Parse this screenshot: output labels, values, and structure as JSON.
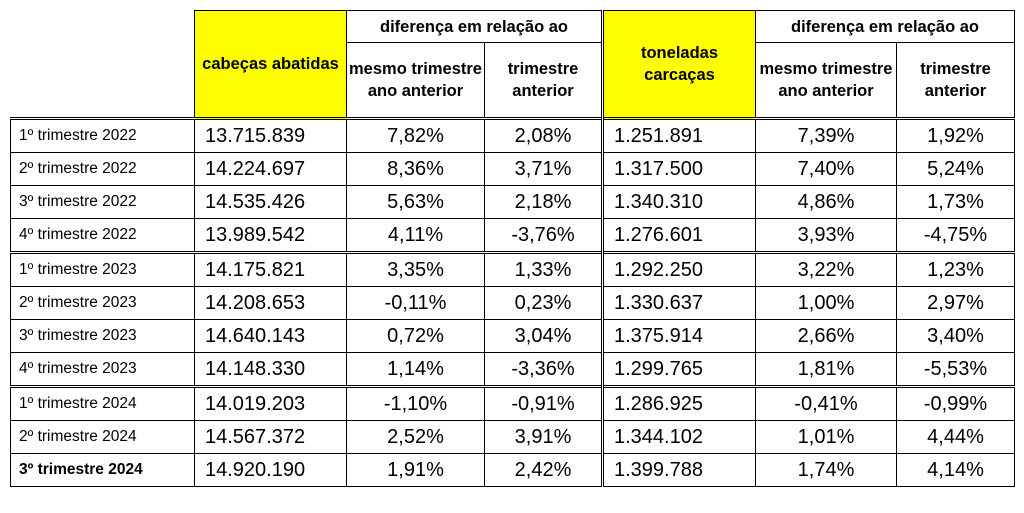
{
  "chart_data": {
    "type": "table",
    "header": {
      "group_label_1": "diferença em relação ao",
      "group_label_2": "diferença em relação ao",
      "col_heads": {
        "cabecas": "cabeças abatidas",
        "mesmo_1": "mesmo trimestre ano anterior",
        "trim_1": "trimestre anterior",
        "toneladas": "toneladas carcaças",
        "mesmo_2": "mesmo trimestre ano anterior",
        "trim_2": "trimestre anterior"
      }
    },
    "rows": [
      {
        "label": "1º trimestre 2022",
        "cabecas": "13.715.839",
        "mesmo_1": "7,82%",
        "trim_1": "2,08%",
        "toneladas": "1.251.891",
        "mesmo_2": "7,39%",
        "trim_2": "1,92%"
      },
      {
        "label": "2º trimestre 2022",
        "cabecas": "14.224.697",
        "mesmo_1": "8,36%",
        "trim_1": "3,71%",
        "toneladas": "1.317.500",
        "mesmo_2": "7,40%",
        "trim_2": "5,24%"
      },
      {
        "label": "3º trimestre 2022",
        "cabecas": "14.535.426",
        "mesmo_1": "5,63%",
        "trim_1": "2,18%",
        "toneladas": "1.340.310",
        "mesmo_2": "4,86%",
        "trim_2": "1,73%"
      },
      {
        "label": "4º trimestre 2022",
        "cabecas": "13.989.542",
        "mesmo_1": "4,11%",
        "trim_1": "-3,76%",
        "toneladas": "1.276.601",
        "mesmo_2": "3,93%",
        "trim_2": "-4,75%"
      },
      {
        "label": "1º trimestre 2023",
        "cabecas": "14.175.821",
        "mesmo_1": "3,35%",
        "trim_1": "1,33%",
        "toneladas": "1.292.250",
        "mesmo_2": "3,22%",
        "trim_2": "1,23%"
      },
      {
        "label": "2º trimestre 2023",
        "cabecas": "14.208.653",
        "mesmo_1": "-0,11%",
        "trim_1": "0,23%",
        "toneladas": "1.330.637",
        "mesmo_2": "1,00%",
        "trim_2": "2,97%"
      },
      {
        "label": "3º trimestre 2023",
        "cabecas": "14.640.143",
        "mesmo_1": "0,72%",
        "trim_1": "3,04%",
        "toneladas": "1.375.914",
        "mesmo_2": "2,66%",
        "trim_2": "3,40%"
      },
      {
        "label": "4º trimestre 2023",
        "cabecas": "14.148.330",
        "mesmo_1": "1,14%",
        "trim_1": "-3,36%",
        "toneladas": "1.299.765",
        "mesmo_2": "1,81%",
        "trim_2": "-5,53%"
      },
      {
        "label": "1º trimestre 2024",
        "cabecas": "14.019.203",
        "mesmo_1": "-1,10%",
        "trim_1": "-0,91%",
        "toneladas": "1.286.925",
        "mesmo_2": "-0,41%",
        "trim_2": "-0,99%"
      },
      {
        "label": "2º trimestre 2024",
        "cabecas": "14.567.372",
        "mesmo_1": "2,52%",
        "trim_1": "3,91%",
        "toneladas": "1.344.102",
        "mesmo_2": "1,01%",
        "trim_2": "4,44%"
      },
      {
        "label": "3º trimestre 2024",
        "cabecas": "14.920.190",
        "mesmo_1": "1,91%",
        "trim_1": "2,42%",
        "toneladas": "1.399.788",
        "mesmo_2": "1,74%",
        "trim_2": "4,14%",
        "bold": true
      }
    ],
    "group_starts": [
      0,
      4,
      8
    ],
    "colors": {
      "highlight": "#ffff00",
      "border": "#000000"
    }
  }
}
